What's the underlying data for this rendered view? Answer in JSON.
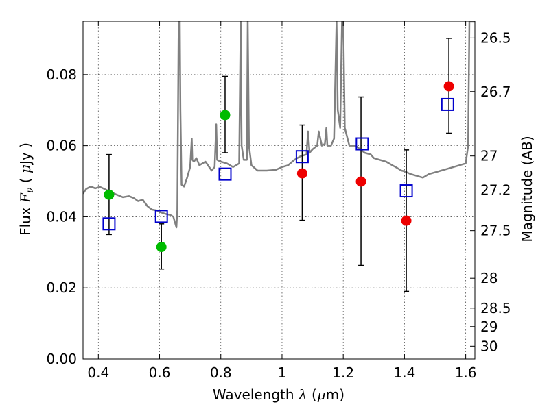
{
  "chart_data": {
    "type": "scatter",
    "title": "",
    "xlabel": "Wavelength  λ (μm)",
    "xlabel_parts": {
      "prefix": "Wavelength  ",
      "symbol": "λ",
      "unit_open": " (",
      "unit_mu": "μ",
      "unit_rest": "m)"
    },
    "ylabel": "Flux  Fν  ( μJy )",
    "ylabel_parts": {
      "prefix": "Flux  ",
      "symbol": "F",
      "subscript": "ν",
      "unit_open": "  ( ",
      "unit_mu": "μ",
      "unit_rest": "Jy )"
    },
    "y2label": "Magnitude (AB)",
    "xlim": [
      0.35,
      1.63
    ],
    "ylim": [
      0.0,
      0.095
    ],
    "grid": true,
    "x_ticks": [
      0.4,
      0.6,
      0.8,
      1.0,
      1.2,
      1.4,
      1.6
    ],
    "x_tick_labels": [
      "0.4",
      "0.6",
      "0.8",
      "1",
      "1.2",
      "1.4",
      "1.6"
    ],
    "y_ticks": [
      0.0,
      0.02,
      0.04,
      0.06,
      0.08
    ],
    "y_tick_labels": [
      "0.00",
      "0.02",
      "0.04",
      "0.06",
      "0.08"
    ],
    "mag_ticks": [
      {
        "label": "26.5",
        "flux": 0.0903
      },
      {
        "label": "26.7",
        "flux": 0.0752
      },
      {
        "label": "27",
        "flux": 0.0571
      },
      {
        "label": "27.2",
        "flux": 0.0475
      },
      {
        "label": "27.5",
        "flux": 0.0361
      },
      {
        "label": "28",
        "flux": 0.0227
      },
      {
        "label": "28.5",
        "flux": 0.0143
      },
      {
        "label": "29",
        "flux": 0.0091
      },
      {
        "label": "30",
        "flux": 0.0036
      }
    ],
    "series": [
      {
        "marker": "circle",
        "color": "#00bb00",
        "points": [
          {
            "x": 0.435,
            "y": 0.0462,
            "yerr_low": 0.035,
            "yerr_high": 0.0575
          },
          {
            "x": 0.606,
            "y": 0.0315,
            "yerr_low": 0.0253,
            "yerr_high": 0.038
          },
          {
            "x": 0.814,
            "y": 0.0686,
            "yerr_low": 0.058,
            "yerr_high": 0.0795
          }
        ]
      },
      {
        "marker": "circle",
        "color": "#ee0000",
        "points": [
          {
            "x": 1.066,
            "y": 0.0522,
            "yerr_low": 0.039,
            "yerr_high": 0.0658
          },
          {
            "x": 1.258,
            "y": 0.0499,
            "yerr_low": 0.0263,
            "yerr_high": 0.0737
          },
          {
            "x": 1.406,
            "y": 0.0389,
            "yerr_low": 0.019,
            "yerr_high": 0.0588
          },
          {
            "x": 1.545,
            "y": 0.0767,
            "yerr_low": 0.0635,
            "yerr_high": 0.0902
          }
        ]
      },
      {
        "marker": "open-square",
        "color": "#0000cc",
        "points": [
          {
            "x": 0.435,
            "y": 0.038
          },
          {
            "x": 0.606,
            "y": 0.0401
          },
          {
            "x": 0.814,
            "y": 0.052
          },
          {
            "x": 1.066,
            "y": 0.0569
          },
          {
            "x": 1.262,
            "y": 0.0605
          },
          {
            "x": 1.406,
            "y": 0.0473
          },
          {
            "x": 1.541,
            "y": 0.0716
          }
        ]
      },
      {
        "marker": "line",
        "color": "#808080",
        "points": [
          [
            0.35,
            0.0465
          ],
          [
            0.36,
            0.0478
          ],
          [
            0.375,
            0.0485
          ],
          [
            0.39,
            0.048
          ],
          [
            0.405,
            0.0484
          ],
          [
            0.42,
            0.0478
          ],
          [
            0.44,
            0.047
          ],
          [
            0.46,
            0.0462
          ],
          [
            0.48,
            0.0455
          ],
          [
            0.5,
            0.0458
          ],
          [
            0.515,
            0.0453
          ],
          [
            0.53,
            0.0444
          ],
          [
            0.545,
            0.0448
          ],
          [
            0.56,
            0.043
          ],
          [
            0.575,
            0.042
          ],
          [
            0.59,
            0.0418
          ],
          [
            0.605,
            0.0412
          ],
          [
            0.62,
            0.0408
          ],
          [
            0.635,
            0.0405
          ],
          [
            0.645,
            0.04
          ],
          [
            0.65,
            0.0385
          ],
          [
            0.655,
            0.037
          ],
          [
            0.658,
            0.042
          ],
          [
            0.662,
            0.09
          ],
          [
            0.664,
            0.095
          ],
          [
            0.666,
            0.095
          ],
          [
            0.668,
            0.07
          ],
          [
            0.672,
            0.049
          ],
          [
            0.68,
            0.0485
          ],
          [
            0.69,
            0.051
          ],
          [
            0.7,
            0.054
          ],
          [
            0.705,
            0.062
          ],
          [
            0.707,
            0.056
          ],
          [
            0.712,
            0.0555
          ],
          [
            0.72,
            0.0565
          ],
          [
            0.73,
            0.0545
          ],
          [
            0.74,
            0.055
          ],
          [
            0.75,
            0.0555
          ],
          [
            0.77,
            0.053
          ],
          [
            0.78,
            0.054
          ],
          [
            0.785,
            0.066
          ],
          [
            0.788,
            0.056
          ],
          [
            0.8,
            0.0555
          ],
          [
            0.82,
            0.055
          ],
          [
            0.84,
            0.054
          ],
          [
            0.86,
            0.055
          ],
          [
            0.865,
            0.095
          ],
          [
            0.868,
            0.06
          ],
          [
            0.875,
            0.056
          ],
          [
            0.885,
            0.056
          ],
          [
            0.888,
            0.095
          ],
          [
            0.892,
            0.06
          ],
          [
            0.9,
            0.0545
          ],
          [
            0.92,
            0.053
          ],
          [
            0.95,
            0.053
          ],
          [
            0.98,
            0.0532
          ],
          [
            1.0,
            0.054
          ],
          [
            1.02,
            0.0545
          ],
          [
            1.04,
            0.056
          ],
          [
            1.06,
            0.057
          ],
          [
            1.08,
            0.0575
          ],
          [
            1.085,
            0.064
          ],
          [
            1.09,
            0.058
          ],
          [
            1.1,
            0.059
          ],
          [
            1.115,
            0.06
          ],
          [
            1.12,
            0.064
          ],
          [
            1.13,
            0.06
          ],
          [
            1.14,
            0.0605
          ],
          [
            1.145,
            0.065
          ],
          [
            1.148,
            0.06
          ],
          [
            1.16,
            0.06
          ],
          [
            1.17,
            0.062
          ],
          [
            1.178,
            0.095
          ],
          [
            1.182,
            0.07
          ],
          [
            1.19,
            0.065
          ],
          [
            1.196,
            0.095
          ],
          [
            1.2,
            0.095
          ],
          [
            1.205,
            0.065
          ],
          [
            1.22,
            0.06
          ],
          [
            1.24,
            0.06
          ],
          [
            1.255,
            0.059
          ],
          [
            1.27,
            0.058
          ],
          [
            1.29,
            0.0575
          ],
          [
            1.3,
            0.0565
          ],
          [
            1.32,
            0.056
          ],
          [
            1.34,
            0.0555
          ],
          [
            1.36,
            0.0545
          ],
          [
            1.375,
            0.0538
          ],
          [
            1.39,
            0.053
          ],
          [
            1.4,
            0.0528
          ],
          [
            1.42,
            0.052
          ],
          [
            1.44,
            0.0515
          ],
          [
            1.46,
            0.051
          ],
          [
            1.48,
            0.052
          ],
          [
            1.5,
            0.0525
          ],
          [
            1.52,
            0.053
          ],
          [
            1.54,
            0.0535
          ],
          [
            1.56,
            0.054
          ],
          [
            1.58,
            0.0545
          ],
          [
            1.6,
            0.055
          ],
          [
            1.608,
            0.06
          ],
          [
            1.612,
            0.095
          ],
          [
            1.63,
            0.095
          ]
        ]
      }
    ]
  }
}
